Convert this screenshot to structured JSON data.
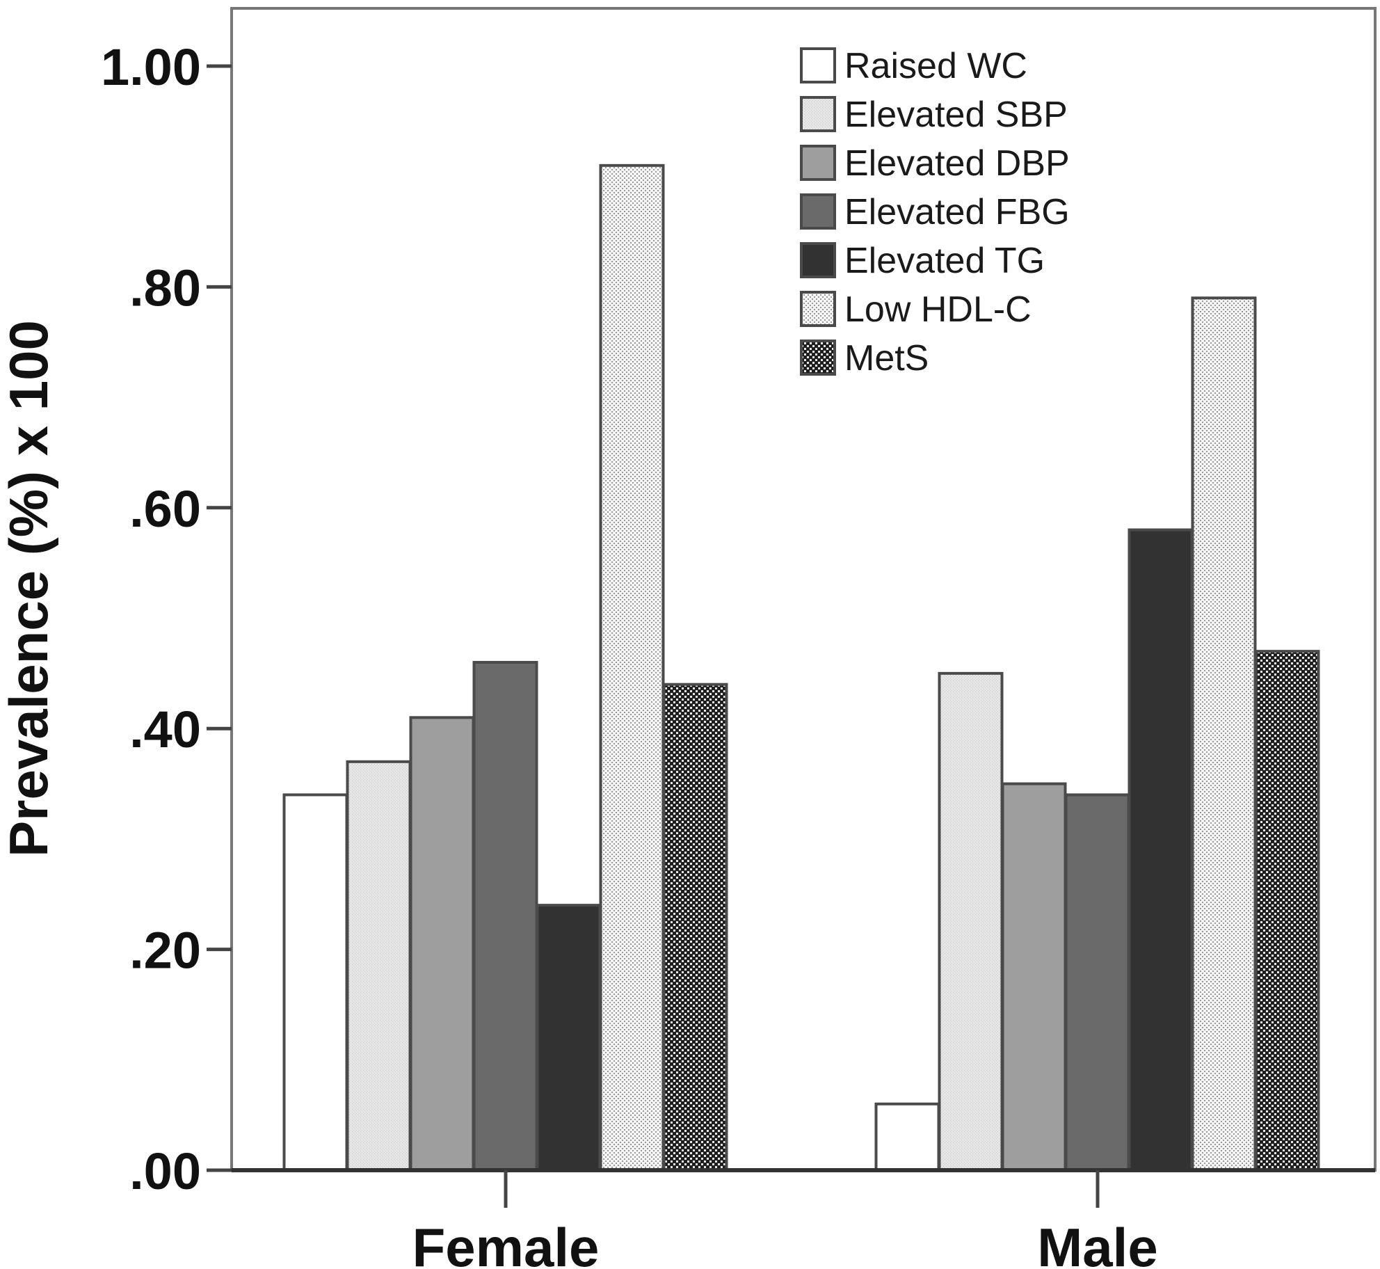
{
  "chart_data": {
    "type": "bar",
    "ylabel": "Prevalence (%) x 100",
    "xlabel": "",
    "categories": [
      "Female",
      "Male"
    ],
    "ylim": [
      0,
      1.05
    ],
    "yticks": [
      0,
      0.2,
      0.4,
      0.6,
      0.8,
      1.0
    ],
    "ytick_labels": [
      ".00",
      ".20",
      ".40",
      ".60",
      ".80",
      "1.00"
    ],
    "legend_position": "top-right (inside plot)",
    "grid": false,
    "series": [
      {
        "name": "Raised WC",
        "values": [
          0.34,
          0.06
        ],
        "fill": "#ffffff",
        "pattern": "none"
      },
      {
        "name": "Elevated SBP",
        "values": [
          0.37,
          0.45
        ],
        "fill": "#e4e4e4",
        "pattern": "light-stipple"
      },
      {
        "name": "Elevated DBP",
        "values": [
          0.41,
          0.35
        ],
        "fill": "#9e9e9e",
        "pattern": "none"
      },
      {
        "name": "Elevated FBG",
        "values": [
          0.46,
          0.34
        ],
        "fill": "#6a6a6a",
        "pattern": "none"
      },
      {
        "name": "Elevated TG",
        "values": [
          0.24,
          0.58
        ],
        "fill": "#323232",
        "pattern": "none"
      },
      {
        "name": "Low HDL-C",
        "values": [
          0.91,
          0.79
        ],
        "fill": "#ececec",
        "pattern": "fine-dots"
      },
      {
        "name": "MetS",
        "values": [
          0.44,
          0.47
        ],
        "fill": "#2a2a2a",
        "pattern": "checker"
      }
    ]
  }
}
